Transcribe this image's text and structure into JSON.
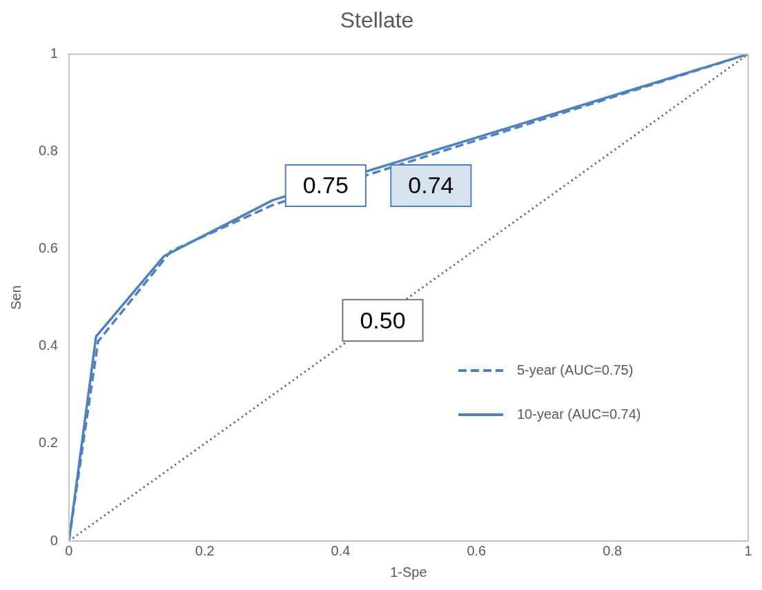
{
  "chart_data": {
    "type": "line",
    "title": "Stellate",
    "xlabel": "1-Spe",
    "ylabel": "Sen",
    "xlim": [
      0,
      1
    ],
    "ylim": [
      0,
      1
    ],
    "xticks": [
      0,
      0.2,
      0.4,
      0.6,
      0.8,
      1
    ],
    "yticks": [
      0,
      0.2,
      0.4,
      0.6,
      0.8,
      1
    ],
    "grid": false,
    "legend": "right",
    "marker": "none",
    "series": [
      {
        "name": "5-year (AUC=0.75)",
        "color": "#4f81bd",
        "line_style": "dashed",
        "x": [
          0,
          0.043,
          0.15,
          0.3,
          1
        ],
        "values": [
          0,
          0.41,
          0.595,
          0.69,
          1
        ]
      },
      {
        "name": "10-year (AUC=0.74)",
        "color": "#4f81bd",
        "line_style": "solid",
        "x": [
          0,
          0.04,
          0.14,
          0.3,
          1
        ],
        "values": [
          0,
          0.42,
          0.585,
          0.7,
          1
        ]
      },
      {
        "color": "#595959",
        "line_style": "dotted",
        "x": [
          0,
          1
        ],
        "values": [
          0,
          1
        ]
      }
    ],
    "annotations": [
      "0.75",
      "0.74",
      "0.50"
    ]
  }
}
